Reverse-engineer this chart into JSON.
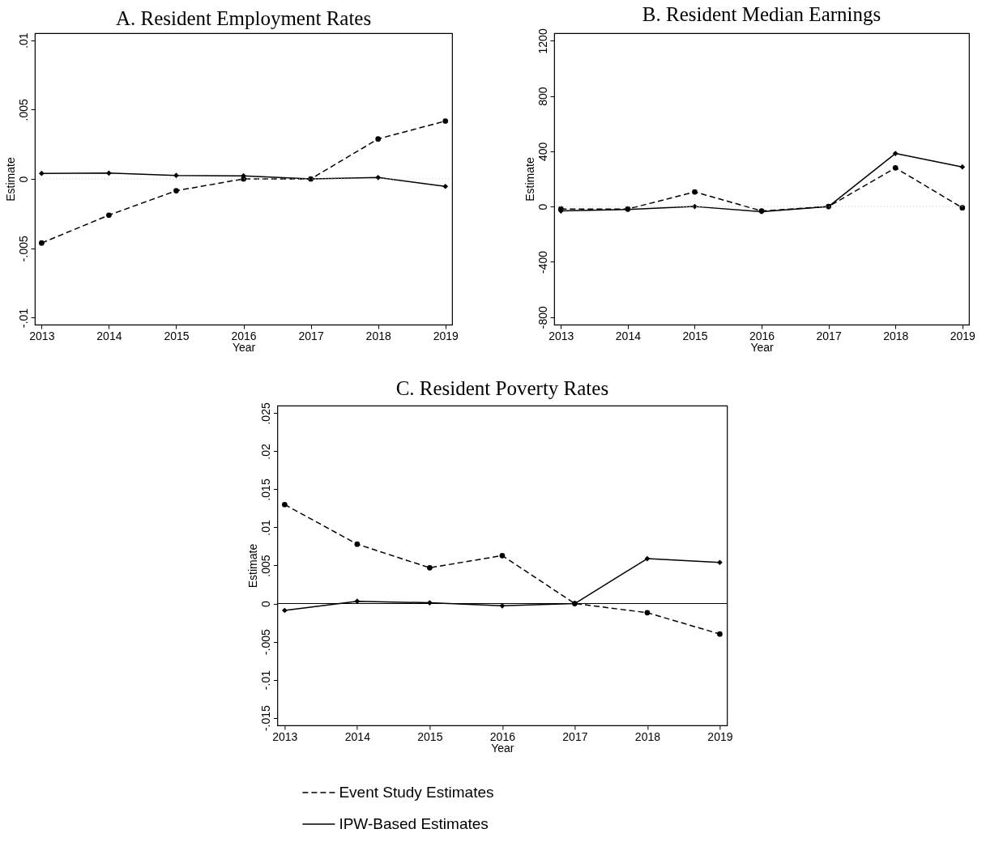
{
  "chart_data": [
    {
      "type": "line",
      "title": "A. Resident Employment Rates",
      "xlabel": "Year",
      "ylabel": "Estimate",
      "x": [
        2013,
        2014,
        2015,
        2016,
        2017,
        2018,
        2019
      ],
      "xlim": [
        2012.9,
        2019.1
      ],
      "xticks": [
        2013,
        2014,
        2015,
        2016,
        2017,
        2018,
        2019
      ],
      "ylim": [
        -0.0105,
        0.0105
      ],
      "yticks": [
        {
          "value": -0.01,
          "label": "-.01"
        },
        {
          "value": -0.005,
          "label": "-.005"
        },
        0,
        {
          "value": 0.005,
          "label": ".005"
        },
        {
          "value": 0.01,
          "label": ".01"
        }
      ],
      "series": [
        {
          "color": "#000000",
          "line_style": "dashed",
          "marker": "circle",
          "values": [
            -0.00462,
            -0.00261,
            -0.00085,
            0,
            0,
            0.00288,
            0.00417
          ]
        },
        {
          "color": "#000000",
          "line_style": "solid",
          "marker": "diamond",
          "values": [
            0.0004,
            0.00042,
            0.00025,
            0.00022,
            0,
            0.0001,
            -0.00054
          ]
        }
      ],
      "ref_lines": [
        {
          "axis": "y",
          "value": 0,
          "color": "#c8c8c8",
          "line_style": "dotted"
        }
      ]
    },
    {
      "type": "line",
      "title": "B. Resident Median Earnings",
      "xlabel": "Year",
      "ylabel": "Estimate",
      "x": [
        2013,
        2014,
        2015,
        2016,
        2017,
        2018,
        2019
      ],
      "xlim": [
        2012.9,
        2019.1
      ],
      "xticks": [
        2013,
        2014,
        2015,
        2016,
        2017,
        2018,
        2019
      ],
      "ylim": [
        -855,
        1255
      ],
      "yticks": [
        -800,
        -400,
        0,
        400,
        800,
        1200
      ],
      "series": [
        {
          "color": "#000000",
          "line_style": "dashed",
          "marker": "circle",
          "values": [
            -18,
            -18,
            106,
            -32,
            0,
            280,
            -9
          ]
        },
        {
          "color": "#000000",
          "line_style": "solid",
          "marker": "diamond",
          "values": [
            -32,
            -21,
            0,
            -37,
            0,
            384,
            287
          ]
        }
      ],
      "ref_lines": [
        {
          "axis": "y",
          "value": 0,
          "color": "#c8c8c8",
          "line_style": "dotted"
        }
      ]
    },
    {
      "type": "line",
      "title": "C. Resident Poverty Rates",
      "xlabel": "Year",
      "ylabel": "Estimate",
      "x": [
        2013,
        2014,
        2015,
        2016,
        2017,
        2018,
        2019
      ],
      "xlim": [
        2012.9,
        2019.1
      ],
      "xticks": [
        2013,
        2014,
        2015,
        2016,
        2017,
        2018,
        2019
      ],
      "ylim": [
        -0.016,
        0.026
      ],
      "yticks": [
        {
          "value": -0.015,
          "label": "-.015"
        },
        {
          "value": -0.01,
          "label": "-.01"
        },
        {
          "value": -0.005,
          "label": "-.005"
        },
        0,
        {
          "value": 0.005,
          "label": ".005"
        },
        {
          "value": 0.01,
          "label": ".01"
        },
        {
          "value": 0.015,
          "label": ".015"
        },
        {
          "value": 0.02,
          "label": ".02"
        },
        {
          "value": 0.025,
          "label": ".025"
        }
      ],
      "series": [
        {
          "name": "Event Study Estimates",
          "color": "#000000",
          "line_style": "dashed",
          "marker": "circle",
          "values": [
            0.013,
            0.0078,
            0.0047,
            0.0063,
            0,
            -0.0012,
            -0.004
          ]
        },
        {
          "name": "IPW-Based Estimates",
          "color": "#000000",
          "line_style": "solid",
          "marker": "diamond",
          "values": [
            -0.0009,
            0.0003,
            0.0001,
            -0.0003,
            0,
            0.0059,
            0.0054
          ]
        }
      ],
      "ref_lines": [
        {
          "axis": "y",
          "value": 0,
          "color": "#000000",
          "line_style": "solid"
        }
      ],
      "legend": "bottom"
    }
  ]
}
